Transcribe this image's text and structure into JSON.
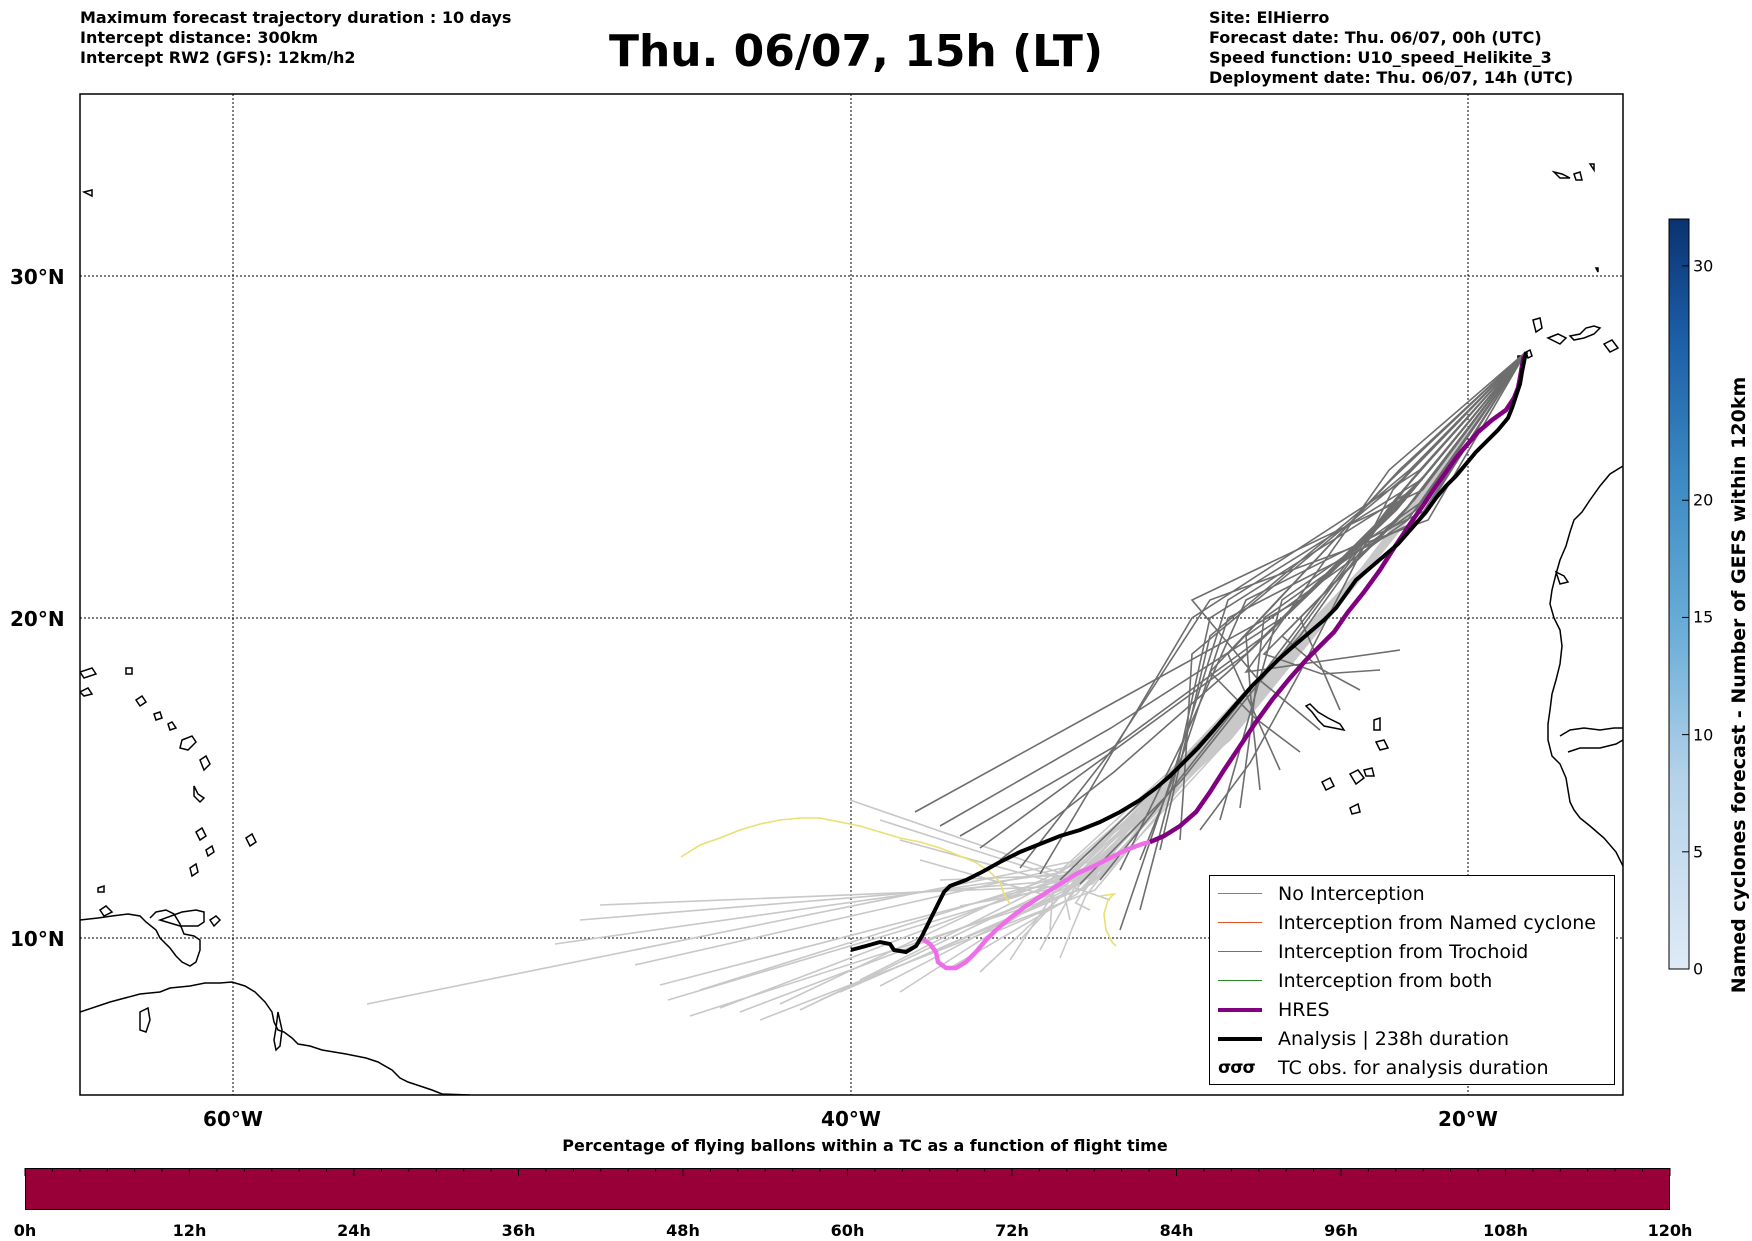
{
  "header": {
    "left_lines": [
      "Maximum forecast trajectory duration : 10 days",
      "Intercept distance: 300km",
      "Intercept RW2 (GFS):  12km/h2"
    ],
    "title": "Thu. 06/07, 15h (LT)",
    "right_lines": [
      "Site: ElHierro",
      "Forecast date: Thu. 06/07, 00h (UTC)",
      "Speed function: U10_speed_Helikite_3",
      "Deployment date: Thu. 06/07, 14h (UTC)"
    ]
  },
  "map": {
    "lat_labels": [
      "30°N",
      "20°N",
      "10°N"
    ],
    "lon_labels": [
      "60°W",
      "40°W",
      "20°W"
    ],
    "colors": {
      "ensemble_light": "#c8c8c8",
      "ensemble_dark": "#6e6e6e",
      "hres": "#800080",
      "hres_early": "#ee6ee8",
      "analysis": "#000000",
      "trochoid_yellow": "#e8e070"
    }
  },
  "legend": {
    "items": [
      {
        "label": "No Interception",
        "color": "#808080",
        "style": "thin"
      },
      {
        "label": "Interception from Named cyclone",
        "color": "#e8501e",
        "style": "thin"
      },
      {
        "label": "Interception from Trochoid",
        "color": "#7a7a2a",
        "style": "thin"
      },
      {
        "label": "Interception from both",
        "color": "#2a8a2a",
        "style": "thin"
      },
      {
        "label": "HRES",
        "color": "#800080",
        "style": "thick"
      },
      {
        "label": "Analysis | 238h duration",
        "color": "#000000",
        "style": "thick"
      },
      {
        "label": "TC obs. for analysis duration",
        "color": "#000000",
        "style": "glyph",
        "glyph": "σσσ"
      }
    ]
  },
  "colorbar": {
    "label": "Named cyclones forecast - Number of GEFS within 120km",
    "ticks": [
      "0",
      "5",
      "10",
      "15",
      "20",
      "30"
    ],
    "tick_values": [
      0,
      5,
      10,
      15,
      20,
      30
    ],
    "max": 32
  },
  "bottom_bar": {
    "title": "Percentage of flying ballons within a TC as a function of flight time",
    "ticks": [
      "0h",
      "12h",
      "24h",
      "36h",
      "48h",
      "60h",
      "72h",
      "84h",
      "96h",
      "108h",
      "120h"
    ],
    "color": "#9a0038"
  }
}
